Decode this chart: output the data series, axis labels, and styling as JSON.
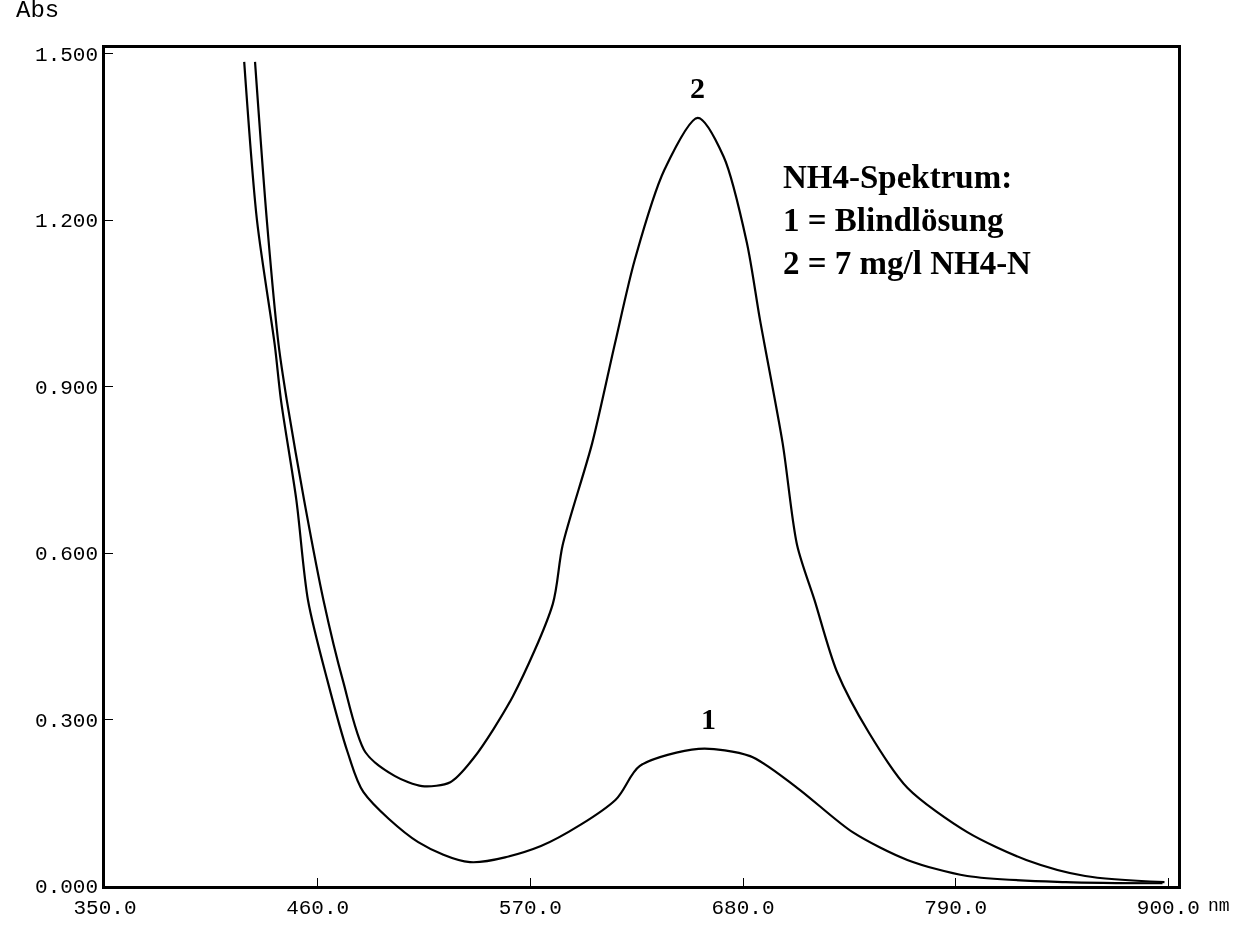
{
  "chart_data": {
    "type": "line",
    "xlabel": "nm",
    "ylabel": "Abs",
    "xlim": [
      350,
      905
    ],
    "ylim": [
      0,
      1.51
    ],
    "xticks": [
      {
        "value": 350,
        "label": "350.0"
      },
      {
        "value": 460,
        "label": "460.0"
      },
      {
        "value": 570,
        "label": "570.0"
      },
      {
        "value": 680,
        "label": "680.0"
      },
      {
        "value": 790,
        "label": "790.0"
      },
      {
        "value": 900,
        "label": "900.0"
      }
    ],
    "yticks": [
      {
        "value": 0,
        "label": "0.000"
      },
      {
        "value": 0.3,
        "label": "0.300"
      },
      {
        "value": 0.6,
        "label": "0.600"
      },
      {
        "value": 0.9,
        "label": "0.900"
      },
      {
        "value": 1.2,
        "label": "1.200"
      },
      {
        "value": 1.5,
        "label": "1.500"
      }
    ],
    "marker": "none",
    "line_style": "solid",
    "annotations": [
      "NH4-Spektrum:\n1 = Blindlösung\n2 = 7 mg/l NH4-N",
      {
        "text": "1",
        "x": 662,
        "y": 0.247
      },
      {
        "text": "2",
        "x": 656.6,
        "y": 1.384
      }
    ],
    "series": [
      {
        "color": "#000000",
        "x": [
          422,
          428.6,
          437.8,
          441,
          449,
          455,
          465,
          475.5,
          483.7,
          512,
          538.8,
          575.5,
          614,
          626.5,
          657,
          683.7,
          708,
          736.7,
          765,
          796,
          847,
          897
        ],
        "values": [
          1.485,
          1.2,
          0.975,
          0.876,
          0.695,
          0.515,
          0.371,
          0.241,
          0.169,
          0.079,
          0.043,
          0.072,
          0.155,
          0.216,
          0.247,
          0.234,
          0.177,
          0.097,
          0.047,
          0.018,
          0.007,
          0.005
        ]
      },
      {
        "color": "#000000",
        "x": [
          427.6,
          433.7,
          439.8,
          444,
          453,
          463,
          473,
          484.7,
          500,
          514,
          528.6,
          540.8,
          561,
          581.6,
          586.7,
          602,
          613.8,
          624,
          639.3,
          656.6,
          670,
          682,
          688.8,
          700.5,
          708,
          717,
          728.6,
          745,
          765,
          796,
          826.5,
          857,
          898
        ],
        "values": [
          1.485,
          1.2,
          0.975,
          0.876,
          0.695,
          0.515,
          0.371,
          0.241,
          0.198,
          0.18,
          0.187,
          0.231,
          0.342,
          0.508,
          0.614,
          0.798,
          0.978,
          1.128,
          1.29,
          1.384,
          1.314,
          1.159,
          1.02,
          0.798,
          0.614,
          0.515,
          0.386,
          0.277,
          0.177,
          0.097,
          0.047,
          0.018,
          0.007
        ]
      }
    ]
  }
}
